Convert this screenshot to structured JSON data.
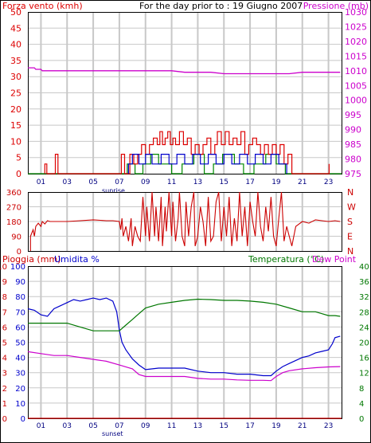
{
  "colors": {
    "wind": "#dd0000",
    "gust": "#0000cc",
    "wind_green": "#008800",
    "pressure": "#cc00cc",
    "direction": "#cc0000",
    "humidity": "#0000cc",
    "temperature": "#007700",
    "dewpoint": "#cc00cc",
    "rain": "#cc0000",
    "grid": "#c8c8c8",
    "frame": "#000000"
  },
  "hour_labels": [
    "01",
    "03",
    "05",
    "07",
    "09",
    "11",
    "13",
    "15",
    "17",
    "19",
    "21",
    "23"
  ],
  "sunrise_label": "sunrise",
  "sunset_label": "sunset",
  "chart_data": [
    {
      "type": "line",
      "panel": "wind-pressure",
      "title": "For the day prior to : 19 Giugno 2007",
      "ylabel": "Forza vento (kmh)",
      "y2label": "Pressione (mb)",
      "ylim": [
        0,
        50
      ],
      "y2lim": [
        975,
        1030
      ],
      "xlim": [
        0,
        24
      ],
      "y_ticks": [
        "0",
        "5",
        "10",
        "15",
        "20",
        "25",
        "30",
        "35",
        "40",
        "45",
        "50"
      ],
      "y2_ticks": [
        "975",
        "980",
        "985",
        "990",
        "995",
        "1000",
        "1005",
        "1010",
        "1015",
        "1020",
        "1025",
        "1030"
      ],
      "series": [
        {
          "role": "pressure-line",
          "axis": "right",
          "x": [
            0,
            0.5,
            0.6,
            1,
            1.1,
            2,
            3,
            3.5,
            4,
            5,
            6,
            7,
            8,
            9,
            10,
            11,
            12,
            13,
            14,
            15,
            16,
            17,
            18,
            19,
            20,
            21,
            22,
            23,
            23.9
          ],
          "values": [
            1011,
            1011,
            1010.5,
            1010.5,
            1010,
            1010,
            1010,
            1010,
            1010,
            1010,
            1010,
            1010,
            1010,
            1010,
            1010,
            1010,
            1009.5,
            1009.5,
            1009.5,
            1009,
            1009,
            1009,
            1009,
            1009,
            1009,
            1009.5,
            1009.5,
            1009.5,
            1009.5
          ]
        },
        {
          "role": "wind-gust-red",
          "axis": "left",
          "x": [
            1.3,
            1.3,
            1.45,
            1.45,
            2.1,
            2.1,
            2.3,
            2.3,
            7.15,
            7.15,
            7.4,
            7.4,
            7.8,
            7.8,
            8.1,
            8.1,
            8.4,
            8.4,
            8.7,
            8.7,
            9.0,
            9.0,
            9.3,
            9.3,
            9.6,
            9.6,
            9.9,
            9.9,
            10.1,
            10.1,
            10.3,
            10.3,
            10.5,
            10.5,
            10.7,
            10.7,
            10.9,
            10.9,
            11.1,
            11.1,
            11.3,
            11.3,
            11.6,
            11.6,
            11.9,
            11.9,
            12.2,
            12.2,
            12.5,
            12.5,
            12.8,
            12.8,
            13.1,
            13.1,
            13.4,
            13.4,
            13.7,
            13.7,
            14.0,
            14.0,
            14.3,
            14.3,
            14.5,
            14.5,
            14.8,
            14.8,
            15.1,
            15.1,
            15.4,
            15.4,
            15.7,
            15.7,
            16.0,
            16.0,
            16.3,
            16.3,
            16.6,
            16.6,
            16.9,
            16.9,
            17.2,
            17.2,
            17.5,
            17.5,
            17.8,
            17.8,
            18.1,
            18.1,
            18.4,
            18.4,
            18.7,
            18.7,
            19.0,
            19.0,
            19.3,
            19.3,
            19.6,
            19.6,
            19.9,
            19.9,
            20.2,
            20.2,
            23.05,
            23.05
          ],
          "values": [
            0,
            3,
            3,
            0,
            0,
            6,
            6,
            0,
            0,
            6,
            6,
            0,
            0,
            6,
            6,
            3,
            3,
            6,
            6,
            9,
            9,
            6,
            6,
            9,
            9,
            11,
            11,
            9,
            9,
            13,
            13,
            9,
            9,
            11,
            11,
            13,
            13,
            9,
            9,
            11,
            11,
            9,
            9,
            13,
            13,
            9,
            9,
            11,
            11,
            6,
            6,
            9,
            9,
            6,
            6,
            9,
            9,
            11,
            11,
            6,
            6,
            9,
            9,
            13,
            13,
            9,
            9,
            13,
            13,
            9,
            9,
            11,
            11,
            9,
            9,
            13,
            13,
            6,
            6,
            9,
            9,
            11,
            11,
            9,
            9,
            6,
            6,
            9,
            9,
            6,
            6,
            9,
            9,
            6,
            6,
            9,
            9,
            3,
            3,
            6,
            6,
            0,
            0,
            3
          ]
        },
        {
          "role": "wind-avg-blue",
          "axis": "left",
          "x": [
            7.7,
            7.7,
            8.0,
            8.0,
            8.5,
            8.5,
            9.0,
            9.0,
            9.5,
            9.5,
            10.2,
            10.2,
            10.8,
            10.8,
            11.4,
            11.4,
            12.0,
            12.0,
            12.6,
            12.6,
            13.2,
            13.2,
            13.8,
            13.8,
            14.4,
            14.4,
            15.0,
            15.0,
            15.6,
            15.6,
            16.2,
            16.2,
            16.8,
            16.8,
            17.4,
            17.4,
            18.0,
            18.0,
            18.6,
            18.6,
            19.2,
            19.2,
            19.8,
            19.8
          ],
          "values": [
            0,
            3,
            3,
            6,
            6,
            3,
            3,
            6,
            6,
            3,
            3,
            6,
            6,
            3,
            3,
            6,
            6,
            3,
            3,
            6,
            6,
            3,
            3,
            6,
            6,
            3,
            3,
            6,
            6,
            3,
            3,
            6,
            6,
            3,
            3,
            6,
            6,
            3,
            3,
            6,
            6,
            3,
            3,
            0
          ]
        },
        {
          "role": "wind-green",
          "axis": "left",
          "x": [
            0,
            7.6,
            7.6,
            8.2,
            8.2,
            8.8,
            8.8,
            9.4,
            9.4,
            10.0,
            10.0,
            11.0,
            11.0,
            11.8,
            11.8,
            12.7,
            12.7,
            13.5,
            13.5,
            14.2,
            14.2,
            14.9,
            14.9,
            15.8,
            15.8,
            16.5,
            16.5,
            17.3,
            17.3,
            18.2,
            18.2,
            19.0,
            19.0,
            19.7,
            19.7,
            24
          ],
          "values": [
            0,
            0,
            3,
            3,
            0,
            0,
            3,
            3,
            6,
            6,
            3,
            3,
            0,
            0,
            3,
            3,
            6,
            6,
            0,
            0,
            3,
            3,
            6,
            6,
            3,
            3,
            0,
            0,
            3,
            3,
            6,
            6,
            3,
            3,
            0,
            0
          ]
        }
      ]
    },
    {
      "type": "line",
      "panel": "wind-direction",
      "ylim": [
        0,
        360
      ],
      "xlim": [
        0,
        24
      ],
      "y_ticks": [
        "0",
        "90",
        "180",
        "270",
        "360"
      ],
      "y2_ticks": [
        "N",
        "E",
        "S",
        "W",
        "N"
      ],
      "series": [
        {
          "role": "direction",
          "x": [
            0.2,
            0.2,
            0.4,
            0.5,
            0.6,
            0.8,
            1.0,
            1.1,
            1.3,
            1.5,
            1.7,
            2.0,
            3.0,
            4.0,
            5.0,
            6.0,
            6.5,
            7.0,
            7.1,
            7.2,
            7.3,
            7.5,
            7.7,
            7.9,
            8.0,
            8.2,
            8.4,
            8.6,
            8.8,
            9.0,
            9.1,
            9.3,
            9.5,
            9.7,
            9.8,
            10.0,
            10.2,
            10.3,
            10.5,
            10.6,
            10.8,
            11.0,
            11.1,
            11.3,
            11.5,
            11.6,
            11.8,
            12.0,
            12.1,
            12.3,
            12.5,
            12.7,
            12.8,
            13.0,
            13.2,
            13.4,
            13.6,
            13.8,
            14.0,
            14.2,
            14.4,
            14.6,
            14.8,
            15.0,
            15.2,
            15.4,
            15.6,
            15.8,
            16.0,
            16.2,
            16.4,
            16.6,
            16.8,
            17.0,
            17.2,
            17.4,
            17.6,
            17.8,
            18.0,
            18.2,
            18.4,
            18.6,
            18.8,
            19.0,
            19.2,
            19.4,
            19.6,
            19.8,
            20.0,
            20.2,
            20.5,
            21.0,
            21.5,
            22.0,
            22.5,
            23.0,
            23.5,
            23.9
          ],
          "values": [
            0,
            90,
            130,
            90,
            150,
            170,
            150,
            180,
            165,
            185,
            180,
            180,
            180,
            185,
            190,
            185,
            185,
            180,
            130,
            200,
            90,
            150,
            60,
            200,
            30,
            150,
            90,
            60,
            330,
            90,
            270,
            60,
            360,
            90,
            270,
            60,
            330,
            30,
            270,
            120,
            360,
            90,
            300,
            60,
            200,
            360,
            90,
            30,
            300,
            90,
            270,
            360,
            30,
            90,
            270,
            180,
            30,
            330,
            60,
            90,
            300,
            360,
            60,
            270,
            90,
            330,
            30,
            200,
            60,
            360,
            90,
            270,
            30,
            300,
            180,
            90,
            360,
            150,
            60,
            270,
            120,
            330,
            90,
            30,
            200,
            360,
            60,
            150,
            90,
            30,
            150,
            180,
            170,
            190,
            185,
            180,
            185,
            180
          ]
        }
      ]
    },
    {
      "type": "line",
      "panel": "rain-humidity-temperature",
      "ylabel": "Pioggia (mm)",
      "ylabel2": "Umidita %",
      "y2label": "Temperatura (°C)",
      "y2label2": "Dew Point",
      "xlim": [
        0,
        24
      ],
      "rain_ticks": [
        "0",
        "1",
        "2",
        "3",
        "4",
        "5",
        "6",
        "7",
        "8",
        "9",
        "10"
      ],
      "humidity_ticks": [
        "0",
        "3",
        "6",
        "9",
        "12",
        "15",
        "18",
        "21",
        "24",
        "27",
        "30"
      ],
      "humidity_ticks_display": [
        "0",
        "10",
        "20",
        "30",
        "40",
        "50",
        "60",
        "70",
        "80",
        "90",
        "100"
      ],
      "temperature_ticks": [
        "0",
        "4",
        "8",
        "12",
        "16",
        "20",
        "24",
        "28",
        "32",
        "36",
        "40"
      ],
      "series": [
        {
          "role": "humidity",
          "name": "Umidita %",
          "axis": "humidity",
          "ylim": [
            0,
            100
          ],
          "x": [
            0,
            0.5,
            1,
            1.5,
            2,
            2.5,
            3,
            3.5,
            4,
            4.5,
            5,
            5.5,
            6,
            6.5,
            6.8,
            7.0,
            7.2,
            7.5,
            8.0,
            8.5,
            9,
            10,
            11,
            12,
            13,
            14,
            15,
            16,
            17,
            18,
            18.6,
            19,
            19.5,
            20,
            20.5,
            21,
            21.5,
            22,
            22.5,
            23,
            23.3,
            23.5,
            23.9
          ],
          "values": [
            72,
            71,
            68,
            67,
            72,
            74,
            76,
            78,
            77,
            78,
            79,
            78,
            79,
            77,
            70,
            58,
            50,
            45,
            39,
            35,
            32,
            33,
            33,
            33,
            31,
            30,
            30,
            29,
            29,
            28,
            28,
            31,
            34,
            36,
            38,
            40,
            41,
            43,
            44,
            45,
            49,
            53,
            54
          ]
        },
        {
          "role": "temperature",
          "name": "Temperatura (°C)",
          "axis": "temperature",
          "ylim": [
            0,
            40
          ],
          "x": [
            0,
            1,
            2,
            3,
            4,
            5,
            6,
            6.5,
            7,
            7.5,
            8,
            8.5,
            9,
            10,
            11,
            12,
            13,
            14,
            15,
            16,
            17,
            18,
            19,
            20,
            21,
            22,
            22.5,
            23,
            23.5,
            23.9
          ],
          "values": [
            25,
            25,
            25,
            25,
            24,
            23,
            23,
            23,
            23,
            24.5,
            26,
            27.5,
            29,
            30,
            30.5,
            31,
            31.3,
            31.2,
            31,
            31,
            30.8,
            30.5,
            30,
            29,
            28,
            28,
            27.5,
            27,
            27,
            26.8
          ]
        },
        {
          "role": "dewpoint",
          "name": "Dew Point",
          "axis": "temperature",
          "ylim": [
            0,
            40
          ],
          "x": [
            0,
            1,
            2,
            3,
            4,
            5,
            6,
            7,
            8,
            8.5,
            9,
            10,
            11,
            12,
            13,
            14,
            15,
            16,
            17,
            18,
            18.6,
            19,
            19.5,
            20,
            21,
            22,
            23,
            23.9
          ],
          "values": [
            17.5,
            17,
            16.5,
            16.5,
            16,
            15.5,
            15,
            14,
            13,
            11.5,
            11,
            11,
            11,
            11,
            10.5,
            10.3,
            10.3,
            10.1,
            10,
            10,
            9.9,
            11,
            12,
            12.5,
            13,
            13.3,
            13.5,
            13.6
          ]
        },
        {
          "role": "rain",
          "name": "Pioggia (mm)",
          "axis": "rain",
          "ylim": [
            0,
            10
          ],
          "x": [
            0,
            24
          ],
          "values": [
            0,
            0
          ]
        }
      ]
    }
  ]
}
